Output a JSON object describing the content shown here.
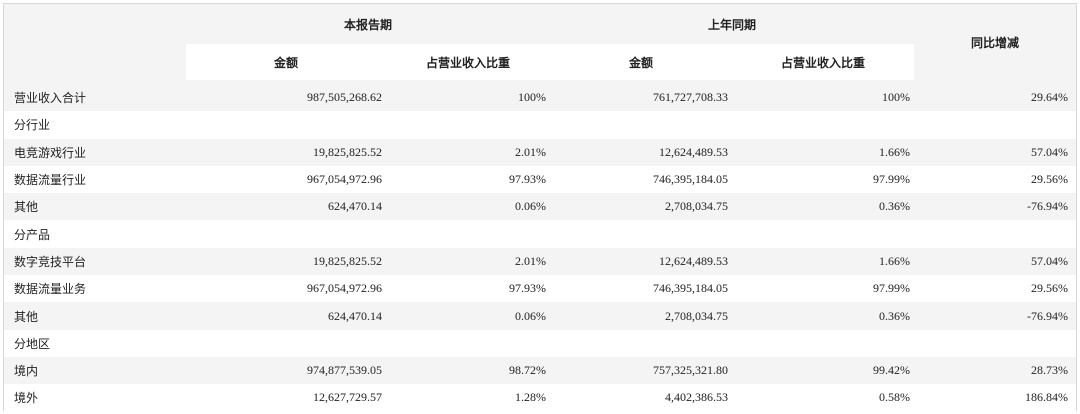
{
  "headers": {
    "current_period": "本报告期",
    "prior_period": "上年同期",
    "yoy": "同比增减",
    "amount": "金额",
    "share": "占营业收入比重"
  },
  "rows": [
    {
      "label": "营业收入合计",
      "cur_amount": "987,505,268.62",
      "cur_share": "100%",
      "prev_amount": "761,727,708.33",
      "prev_share": "100%",
      "yoy": "29.64%"
    },
    {
      "label": "分行业",
      "cur_amount": "",
      "cur_share": "",
      "prev_amount": "",
      "prev_share": "",
      "yoy": ""
    },
    {
      "label": "电竞游戏行业",
      "cur_amount": "19,825,825.52",
      "cur_share": "2.01%",
      "prev_amount": "12,624,489.53",
      "prev_share": "1.66%",
      "yoy": "57.04%"
    },
    {
      "label": "数据流量行业",
      "cur_amount": "967,054,972.96",
      "cur_share": "97.93%",
      "prev_amount": "746,395,184.05",
      "prev_share": "97.99%",
      "yoy": "29.56%"
    },
    {
      "label": "其他",
      "cur_amount": "624,470.14",
      "cur_share": "0.06%",
      "prev_amount": "2,708,034.75",
      "prev_share": "0.36%",
      "yoy": "-76.94%"
    },
    {
      "label": "分产品",
      "cur_amount": "",
      "cur_share": "",
      "prev_amount": "",
      "prev_share": "",
      "yoy": ""
    },
    {
      "label": "数字竞技平台",
      "cur_amount": "19,825,825.52",
      "cur_share": "2.01%",
      "prev_amount": "12,624,489.53",
      "prev_share": "1.66%",
      "yoy": "57.04%"
    },
    {
      "label": "数据流量业务",
      "cur_amount": "967,054,972.96",
      "cur_share": "97.93%",
      "prev_amount": "746,395,184.05",
      "prev_share": "97.99%",
      "yoy": "29.56%"
    },
    {
      "label": "其他",
      "cur_amount": "624,470.14",
      "cur_share": "0.06%",
      "prev_amount": "2,708,034.75",
      "prev_share": "0.36%",
      "yoy": "-76.94%"
    },
    {
      "label": "分地区",
      "cur_amount": "",
      "cur_share": "",
      "prev_amount": "",
      "prev_share": "",
      "yoy": ""
    },
    {
      "label": "境内",
      "cur_amount": "974,877,539.05",
      "cur_share": "98.72%",
      "prev_amount": "757,325,321.80",
      "prev_share": "99.42%",
      "yoy": "28.73%"
    },
    {
      "label": "境外",
      "cur_amount": "12,627,729.57",
      "cur_share": "1.28%",
      "prev_amount": "4,402,386.53",
      "prev_share": "0.58%",
      "yoy": "186.84%"
    }
  ]
}
